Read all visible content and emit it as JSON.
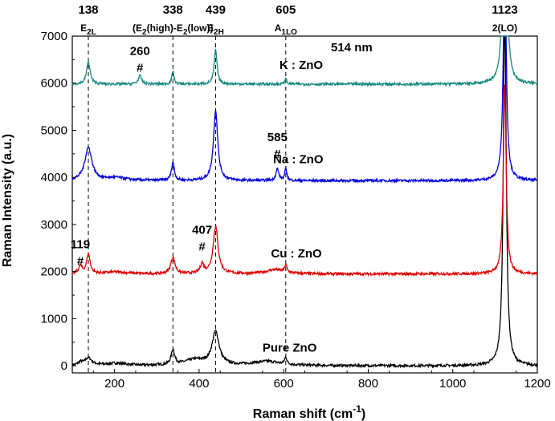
{
  "chart_data": {
    "type": "line",
    "xlabel": "Raman shift (cm",
    "xlabel_sup": "-1",
    "xlabel_end": ")",
    "ylabel": "Raman Intensity (a.u.)",
    "xlim": [
      100,
      1200
    ],
    "ylim": [
      -150,
      7000
    ],
    "x_ticks": [
      200,
      400,
      600,
      800,
      1000,
      1200
    ],
    "y_ticks": [
      0,
      1000,
      2000,
      3000,
      4000,
      5000,
      6000,
      7000
    ],
    "excitation": "514 nm",
    "reference_lines": [
      138,
      338,
      439,
      605
    ],
    "top_peak_labels": [
      {
        "value": 138,
        "text": "138"
      },
      {
        "value": 338,
        "text": "338"
      },
      {
        "value": 439,
        "text": "439"
      },
      {
        "value": 605,
        "text": "605"
      },
      {
        "value": 1123,
        "text": "1123"
      }
    ],
    "mode_labels": [
      {
        "value": 138,
        "main": "E",
        "sub": "2L"
      },
      {
        "value": 338,
        "main": "(E",
        "sub": "2",
        "rest": "(high)-E",
        "sub2": "2",
        "rest2": "(low))"
      },
      {
        "value": 439,
        "main": "E",
        "sub": "2H"
      },
      {
        "value": 605,
        "main": "A",
        "sub": "1LO"
      },
      {
        "value": 1123,
        "main": "2(LO)"
      }
    ],
    "annotations": [
      {
        "text": "260",
        "x": 260,
        "y": 6600,
        "mark": "#"
      },
      {
        "text": "585",
        "x": 585,
        "y": 4770,
        "mark": "#"
      },
      {
        "text": "407",
        "x": 407,
        "y": 2800,
        "mark": "#"
      },
      {
        "text": "119",
        "x": 119,
        "y": 2500,
        "mark": "#"
      }
    ],
    "series": [
      {
        "name": "Pure ZnO",
        "color": "#000000",
        "baseline": 0,
        "label_pos": [
          550,
          300
        ],
        "peaks": [
          [
            119,
            60,
            6
          ],
          [
            138,
            160,
            10
          ],
          [
            203,
            50,
            30
          ],
          [
            338,
            310,
            5
          ],
          [
            390,
            120,
            30
          ],
          [
            439,
            700,
            10
          ],
          [
            560,
            90,
            40
          ],
          [
            605,
            150,
            3
          ],
          [
            1123,
            7800,
            4
          ]
        ]
      },
      {
        "name": "Cu : ZnO",
        "color": "#e00000",
        "baseline": 1950,
        "label_pos": [
          570,
          2300
        ],
        "peaks": [
          [
            119,
            160,
            5
          ],
          [
            138,
            420,
            5
          ],
          [
            203,
            40,
            30
          ],
          [
            338,
            350,
            6
          ],
          [
            407,
            200,
            5
          ],
          [
            439,
            1000,
            7
          ],
          [
            580,
            90,
            25
          ],
          [
            605,
            160,
            3
          ],
          [
            1123,
            4000,
            4
          ]
        ]
      },
      {
        "name": "Na : ZnO",
        "color": "#0000dd",
        "baseline": 3930,
        "label_pos": [
          575,
          4300
        ],
        "peaks": [
          [
            138,
            700,
            10
          ],
          [
            203,
            60,
            30
          ],
          [
            338,
            390,
            4
          ],
          [
            439,
            1500,
            6
          ],
          [
            585,
            250,
            4
          ],
          [
            605,
            240,
            3
          ],
          [
            1123,
            5000,
            4
          ]
        ]
      },
      {
        "name": "K : ZnO",
        "color": "#188a80",
        "baseline": 5980,
        "label_pos": [
          590,
          6300
        ],
        "peaks": [
          [
            138,
            480,
            5
          ],
          [
            260,
            170,
            5
          ],
          [
            338,
            270,
            3
          ],
          [
            439,
            730,
            4
          ],
          [
            605,
            110,
            3
          ],
          [
            1123,
            7200,
            4
          ]
        ]
      }
    ]
  }
}
